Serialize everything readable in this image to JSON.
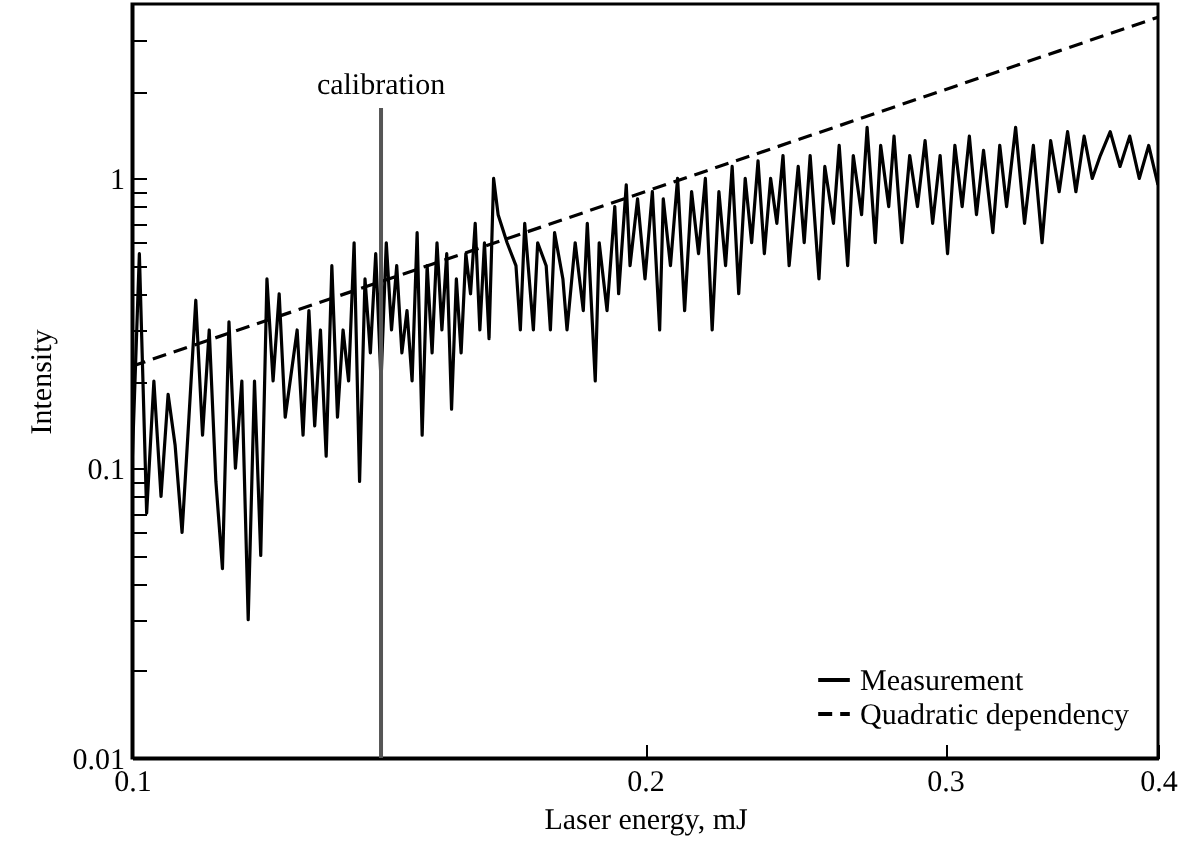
{
  "chart_data": {
    "type": "line",
    "xlabel": "Laser energy, mJ",
    "ylabel": "Intensity",
    "log": "xy",
    "legend": "bottom right",
    "xlim": [
      0.1,
      0.4
    ],
    "xticks": [
      0.1,
      0.2,
      0.3,
      0.4
    ],
    "ylim": [
      0.01,
      4
    ],
    "yticks": [
      0.01,
      {
        "value": 0.02,
        "label": null
      },
      {
        "value": 0.03,
        "label": null
      },
      {
        "value": 0.04,
        "label": null
      },
      {
        "value": 0.05,
        "label": null
      },
      {
        "value": 0.06,
        "label": null
      },
      {
        "value": 0.07,
        "label": null
      },
      {
        "value": 0.08,
        "label": null
      },
      {
        "value": 0.09,
        "label": null
      },
      0.1,
      {
        "value": 0.2,
        "label": null
      },
      {
        "value": 0.3,
        "label": null
      },
      {
        "value": 0.4,
        "label": null
      },
      {
        "value": 0.5,
        "label": null
      },
      {
        "value": 0.6,
        "label": null
      },
      {
        "value": 0.7,
        "label": null
      },
      {
        "value": 0.8,
        "label": null
      },
      {
        "value": 0.9,
        "label": null
      },
      1,
      {
        "value": 2,
        "label": null
      },
      {
        "value": 3,
        "label": null
      }
    ],
    "ref_lines": [
      {
        "axis": "x",
        "value": 0.14,
        "label": "calibration",
        "color": "#555555"
      }
    ],
    "series": [
      {
        "name": "Measurement",
        "color": "#000000",
        "line_style": "solid",
        "x": [
          0.1,
          0.101,
          0.102,
          0.103,
          0.104,
          0.105,
          0.106,
          0.107,
          0.108,
          0.109,
          0.11,
          0.111,
          0.112,
          0.113,
          0.114,
          0.115,
          0.116,
          0.117,
          0.118,
          0.119,
          0.12,
          0.121,
          0.122,
          0.123,
          0.125,
          0.126,
          0.127,
          0.128,
          0.129,
          0.13,
          0.131,
          0.132,
          0.133,
          0.134,
          0.135,
          0.136,
          0.137,
          0.138,
          0.139,
          0.14,
          0.141,
          0.142,
          0.143,
          0.144,
          0.145,
          0.146,
          0.147,
          0.148,
          0.149,
          0.15,
          0.151,
          0.152,
          0.153,
          0.154,
          0.155,
          0.156,
          0.157,
          0.158,
          0.159,
          0.16,
          0.161,
          0.162,
          0.163,
          0.164,
          0.166,
          0.168,
          0.169,
          0.17,
          0.172,
          0.173,
          0.175,
          0.176,
          0.177,
          0.179,
          0.18,
          0.182,
          0.184,
          0.185,
          0.187,
          0.188,
          0.19,
          0.192,
          0.193,
          0.195,
          0.196,
          0.198,
          0.2,
          0.202,
          0.204,
          0.205,
          0.207,
          0.209,
          0.211,
          0.213,
          0.215,
          0.217,
          0.219,
          0.221,
          0.223,
          0.225,
          0.227,
          0.229,
          0.231,
          0.233,
          0.235,
          0.237,
          0.239,
          0.241,
          0.243,
          0.246,
          0.248,
          0.25,
          0.253,
          0.255,
          0.258,
          0.26,
          0.263,
          0.265,
          0.268,
          0.27,
          0.273,
          0.275,
          0.278,
          0.28,
          0.283,
          0.286,
          0.289,
          0.292,
          0.295,
          0.298,
          0.301,
          0.304,
          0.307,
          0.31,
          0.313,
          0.316,
          0.32,
          0.323,
          0.326,
          0.33,
          0.334,
          0.338,
          0.342,
          0.346,
          0.35,
          0.354,
          0.358,
          0.362,
          0.366,
          0.37,
          0.375,
          0.38,
          0.385,
          0.39,
          0.395,
          0.4
        ],
        "values": [
          0.1,
          0.55,
          0.07,
          0.2,
          0.08,
          0.18,
          0.12,
          0.06,
          0.15,
          0.38,
          0.13,
          0.3,
          0.09,
          0.045,
          0.32,
          0.1,
          0.2,
          0.03,
          0.2,
          0.05,
          0.45,
          0.2,
          0.4,
          0.15,
          0.3,
          0.13,
          0.35,
          0.14,
          0.3,
          0.11,
          0.5,
          0.15,
          0.3,
          0.2,
          0.6,
          0.09,
          0.45,
          0.25,
          0.55,
          0.2,
          0.6,
          0.3,
          0.5,
          0.25,
          0.35,
          0.2,
          0.65,
          0.13,
          0.5,
          0.25,
          0.6,
          0.3,
          0.55,
          0.16,
          0.45,
          0.25,
          0.55,
          0.4,
          0.7,
          0.3,
          0.6,
          0.28,
          1.0,
          0.75,
          0.6,
          0.5,
          0.3,
          0.7,
          0.3,
          0.6,
          0.5,
          0.3,
          0.65,
          0.45,
          0.3,
          0.6,
          0.35,
          0.7,
          0.2,
          0.6,
          0.35,
          0.8,
          0.4,
          0.95,
          0.5,
          0.85,
          0.45,
          0.9,
          0.3,
          0.85,
          0.5,
          1.0,
          0.35,
          0.9,
          0.55,
          1.0,
          0.3,
          0.9,
          0.5,
          1.1,
          0.4,
          1.0,
          0.6,
          1.15,
          0.55,
          1.0,
          0.7,
          1.2,
          0.5,
          1.1,
          0.6,
          1.2,
          0.45,
          1.1,
          0.7,
          1.3,
          0.5,
          1.2,
          0.75,
          1.5,
          0.6,
          1.3,
          0.8,
          1.4,
          0.6,
          1.2,
          0.8,
          1.35,
          0.7,
          1.2,
          0.55,
          1.3,
          0.8,
          1.4,
          0.75,
          1.25,
          0.65,
          1.3,
          0.8,
          1.5,
          0.7,
          1.3,
          0.6,
          1.35,
          0.9,
          1.45,
          0.9,
          1.4,
          1.0,
          1.2,
          1.45,
          1.1,
          1.4,
          1.0,
          1.3,
          0.95
        ]
      },
      {
        "name": "Quadratic dependency",
        "color": "#000000",
        "line_style": "dashed",
        "x": [
          0.1,
          0.15,
          0.2,
          0.25,
          0.3,
          0.35,
          0.4
        ],
        "values": [
          0.225,
          0.506,
          0.9,
          1.406,
          2.025,
          2.756,
          3.6
        ]
      }
    ]
  }
}
